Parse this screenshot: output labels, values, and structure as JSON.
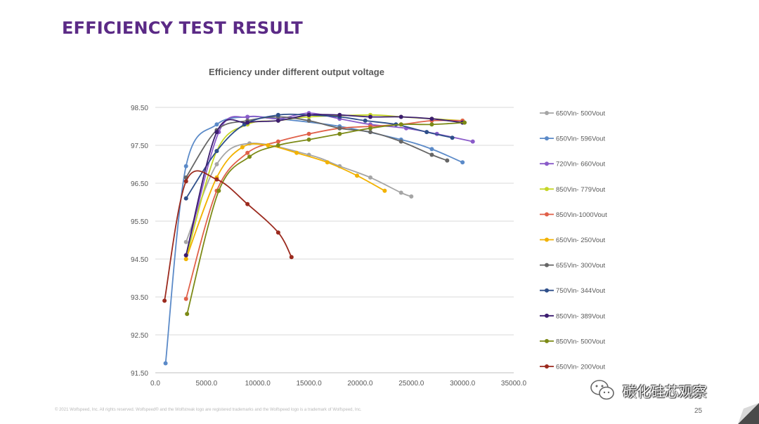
{
  "slide": {
    "title": "EFFICIENCY TEST RESULT",
    "footer": "© 2021 Wolfspeed, Inc. All rights reserved. Wolfspeed® and the Wolfstreak logo are registered trademarks and the Wolfspeed logo is a trademark of Wolfspeed, Inc.",
    "page_number": "25",
    "watermark_text": "碳化硅芯观察"
  },
  "chart_data": {
    "type": "line",
    "title": "Efficiency under different output voltage",
    "xlabel": "",
    "ylabel": "",
    "xlim": [
      0,
      35000
    ],
    "ylim": [
      91.5,
      98.5
    ],
    "x_ticks": [
      "0.0",
      "5000.0",
      "10000.0",
      "15000.0",
      "20000.0",
      "25000.0",
      "30000.0",
      "35000.0"
    ],
    "y_ticks": [
      "91.50",
      "92.50",
      "93.50",
      "94.50",
      "95.50",
      "96.50",
      "97.50",
      "98.50"
    ],
    "grid": "horizontal",
    "legend_position": "right",
    "series": [
      {
        "name": "650Vin- 500Vout",
        "color": "#a5a5a5",
        "x": [
          3000,
          6000,
          9200,
          15000,
          18000,
          21000,
          24000,
          25000
        ],
        "y": [
          94.95,
          97.0,
          97.55,
          97.25,
          96.95,
          96.65,
          96.25,
          96.15
        ]
      },
      {
        "name": "650Vin- 596Vout",
        "color": "#5b8ac8",
        "x": [
          1000,
          3000,
          6000,
          9000,
          12000,
          18000,
          24000,
          27000,
          30000
        ],
        "y": [
          91.75,
          96.95,
          98.05,
          98.25,
          98.2,
          98.0,
          97.65,
          97.4,
          97.05
        ]
      },
      {
        "name": "720Vin- 660Vout",
        "color": "#8a5bc9",
        "x": [
          3000,
          6200,
          9000,
          12000,
          15000,
          18000,
          21000,
          24500,
          27500,
          31000
        ],
        "y": [
          94.6,
          97.85,
          98.25,
          98.2,
          98.35,
          98.2,
          98.05,
          97.95,
          97.8,
          97.6
        ]
      },
      {
        "name": "850Vin- 779Vout",
        "color": "#c5d626",
        "x": [
          3000,
          6000,
          9000,
          12000,
          15000,
          21000,
          24000,
          27000,
          30000
        ],
        "y": [
          94.5,
          97.35,
          98.05,
          98.15,
          98.25,
          98.3,
          98.25,
          98.2,
          98.15
        ]
      },
      {
        "name": "850Vin-1000Vout",
        "color": "#e06049",
        "x": [
          3000,
          6000,
          9000,
          12000,
          15000,
          18000,
          21000,
          24000,
          27000,
          30000
        ],
        "y": [
          93.45,
          96.3,
          97.3,
          97.6,
          97.8,
          97.95,
          98.0,
          98.05,
          98.15,
          98.15
        ]
      },
      {
        "name": "650Vin- 250Vout",
        "color": "#f2b200",
        "x": [
          3000,
          6000,
          8500,
          11000,
          13800,
          16800,
          19700,
          22400
        ],
        "y": [
          94.5,
          96.65,
          97.45,
          97.5,
          97.3,
          97.05,
          96.7,
          96.3
        ]
      },
      {
        "name": "655Vin- 300Vout",
        "color": "#666666",
        "x": [
          3000,
          6000,
          9000,
          12000,
          15000,
          18000,
          21000,
          24000,
          27000,
          28500
        ],
        "y": [
          96.65,
          97.9,
          98.15,
          98.25,
          98.15,
          97.95,
          97.85,
          97.6,
          97.25,
          97.1
        ]
      },
      {
        "name": "750Vin- 344Vout",
        "color": "#2e4f8a",
        "x": [
          3000,
          6000,
          8700,
          12000,
          15000,
          18000,
          20500,
          23500,
          26500,
          29000
        ],
        "y": [
          96.1,
          97.35,
          98.05,
          98.3,
          98.3,
          98.25,
          98.15,
          98.05,
          97.85,
          97.7
        ]
      },
      {
        "name": "850Vin- 389Vout",
        "color": "#3c1d70",
        "x": [
          3000,
          6000,
          9000,
          12000,
          15000,
          18000,
          21000,
          24000,
          27000,
          30000
        ],
        "y": [
          94.6,
          97.85,
          98.1,
          98.15,
          98.3,
          98.3,
          98.25,
          98.25,
          98.2,
          98.1
        ]
      },
      {
        "name": "850Vin- 500Vout",
        "color": "#7c8a16",
        "x": [
          3100,
          6200,
          9200,
          12000,
          15000,
          18000,
          21000,
          24000,
          27000,
          30200
        ],
        "y": [
          93.05,
          96.3,
          97.2,
          97.5,
          97.65,
          97.8,
          97.95,
          98.05,
          98.05,
          98.1
        ]
      },
      {
        "name": "650Vin- 200Vout",
        "color": "#9b2a1e",
        "x": [
          900,
          3000,
          6000,
          9000,
          12000,
          13300
        ],
        "y": [
          93.4,
          96.55,
          96.6,
          95.95,
          95.2,
          94.55
        ]
      }
    ]
  }
}
